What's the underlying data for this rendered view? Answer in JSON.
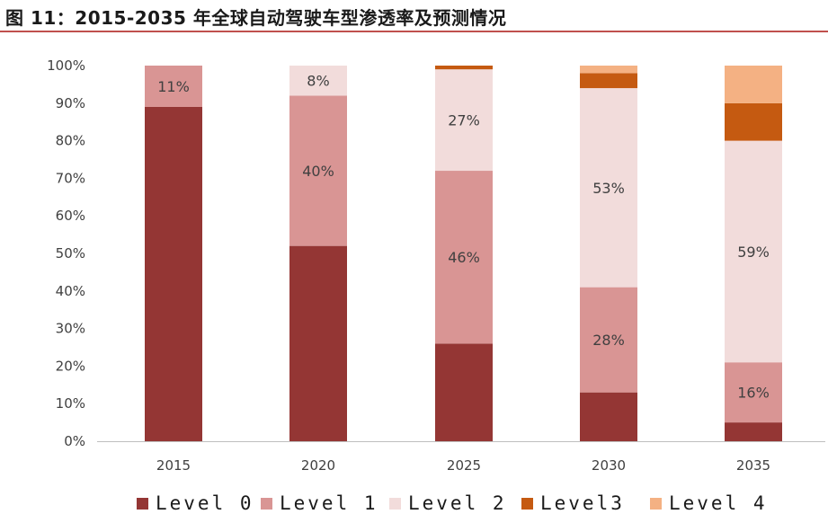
{
  "title": "图 11：2015-2035 年全球自动驾驶车型渗透率及预测情况",
  "chart_data": {
    "type": "bar",
    "stacked": true,
    "categories": [
      "2015",
      "2020",
      "2025",
      "2030",
      "2035"
    ],
    "ylim": [
      0,
      100
    ],
    "yticks": [
      "0%",
      "10%",
      "20%",
      "30%",
      "40%",
      "50%",
      "60%",
      "70%",
      "80%",
      "90%",
      "100%"
    ],
    "grid": false,
    "legend_position": "bottom",
    "series": [
      {
        "name": "Level 0",
        "color": "#943634",
        "values": [
          89,
          52,
          26,
          13,
          5
        ],
        "labels": [
          "",
          "",
          "",
          "",
          ""
        ]
      },
      {
        "name": "Level 1",
        "color": "#d99594",
        "values": [
          11,
          40,
          46,
          28,
          16
        ],
        "labels": [
          "11%",
          "40%",
          "46%",
          "28%",
          "16%"
        ]
      },
      {
        "name": "Level 2",
        "color": "#f2dcdb",
        "values": [
          0,
          8,
          27,
          53,
          59
        ],
        "labels": [
          "",
          "8%",
          "27%",
          "53%",
          "59%"
        ]
      },
      {
        "name": "Level3",
        "color": "#c55a11",
        "values": [
          0,
          0,
          1,
          4,
          10
        ],
        "labels": [
          "",
          "",
          "",
          "",
          ""
        ]
      },
      {
        "name": "Level 4",
        "color": "#f4b183",
        "values": [
          0,
          0,
          0,
          2,
          10
        ],
        "labels": [
          "",
          "",
          "",
          "",
          ""
        ]
      }
    ]
  }
}
